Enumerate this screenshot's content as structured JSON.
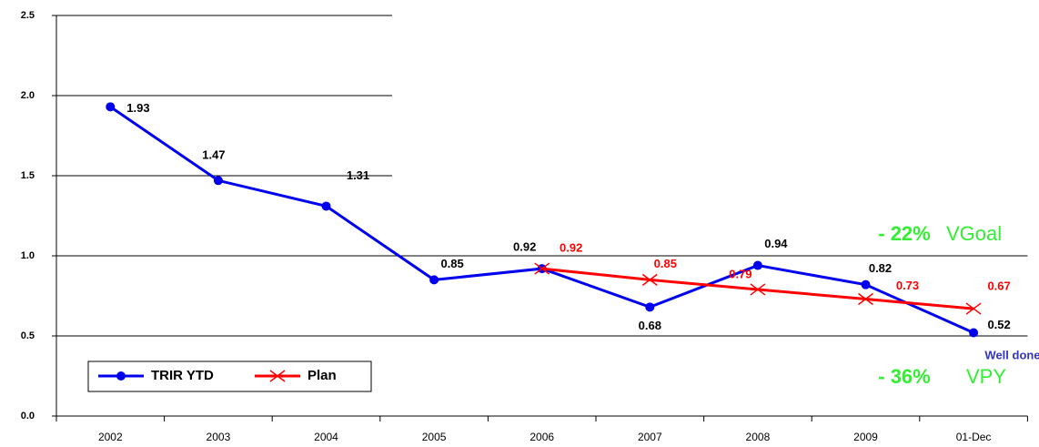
{
  "chart_data": {
    "type": "line",
    "categories": [
      "2002",
      "2003",
      "2004",
      "2005",
      "2006",
      "2007",
      "2008",
      "2009",
      "01-Dec"
    ],
    "series": [
      {
        "name": "TRIR YTD",
        "color": "#0000ee",
        "marker": "circle",
        "values": [
          1.93,
          1.47,
          1.31,
          0.85,
          0.92,
          0.68,
          0.94,
          0.82,
          0.52
        ]
      },
      {
        "name": "Plan",
        "color": "#ff0000",
        "marker": "x",
        "values": [
          null,
          null,
          null,
          null,
          0.92,
          0.85,
          0.79,
          0.73,
          0.67
        ]
      }
    ],
    "ylim": [
      0,
      2.5
    ],
    "yticks": [
      {
        "value": 0,
        "label": "0.0"
      },
      0.5,
      {
        "value": 1,
        "label": "1.0"
      },
      1.5,
      {
        "value": 2,
        "label": "2.0"
      },
      2.5
    ],
    "grid": true,
    "annotations": [
      "- 22%",
      "VGoal",
      "- 36%",
      "VPY",
      "Well done"
    ]
  }
}
